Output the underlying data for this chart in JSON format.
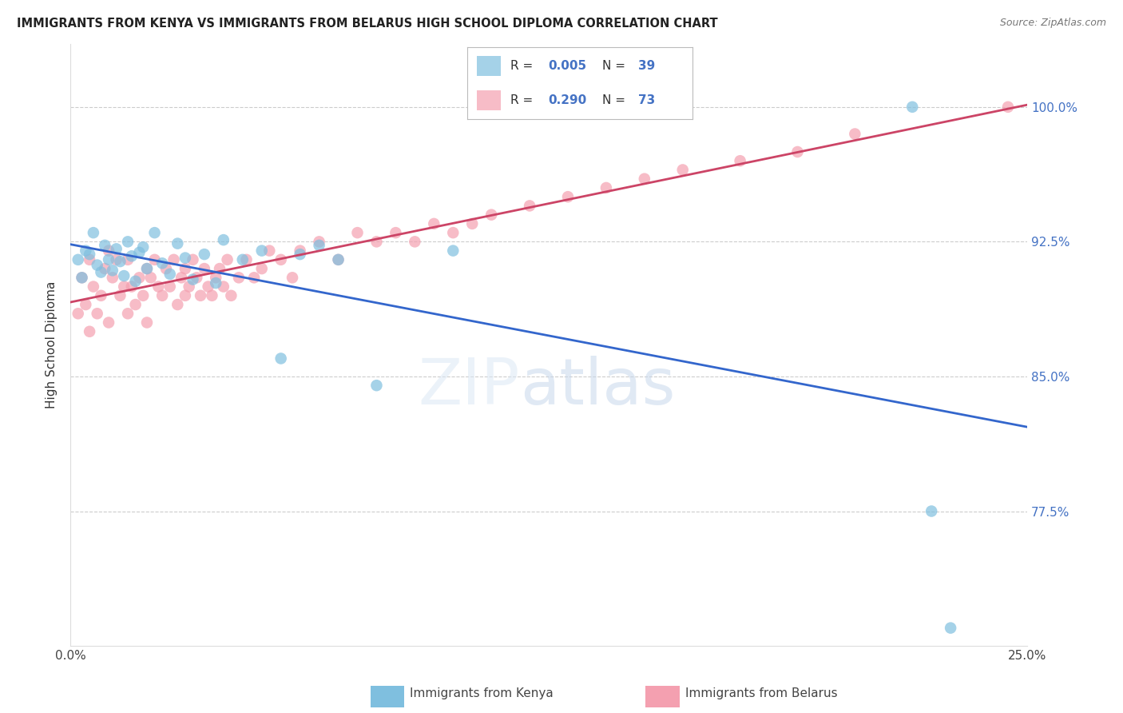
{
  "title": "IMMIGRANTS FROM KENYA VS IMMIGRANTS FROM BELARUS HIGH SCHOOL DIPLOMA CORRELATION CHART",
  "source": "Source: ZipAtlas.com",
  "ylabel_label": "High School Diploma",
  "xlim": [
    0.0,
    25.0
  ],
  "ylim": [
    70.0,
    103.5
  ],
  "y_ticks": [
    77.5,
    85.0,
    92.5,
    100.0
  ],
  "kenya_color": "#7fbfdf",
  "belarus_color": "#f4a0b0",
  "kenya_R": 0.005,
  "kenya_N": 39,
  "belarus_R": 0.29,
  "belarus_N": 73,
  "kenya_line_color": "#3366cc",
  "belarus_line_color": "#cc4466",
  "kenya_scatter_x": [
    0.2,
    0.3,
    0.4,
    0.5,
    0.6,
    0.7,
    0.8,
    0.9,
    1.0,
    1.1,
    1.2,
    1.3,
    1.4,
    1.5,
    1.6,
    1.7,
    1.8,
    1.9,
    2.0,
    2.2,
    2.4,
    2.6,
    2.8,
    3.0,
    3.2,
    3.5,
    3.8,
    4.0,
    4.5,
    5.0,
    5.5,
    6.0,
    6.5,
    7.0,
    8.0,
    10.0,
    22.0,
    22.5,
    23.0
  ],
  "kenya_scatter_y": [
    91.5,
    90.5,
    92.0,
    91.8,
    93.0,
    91.2,
    90.8,
    92.3,
    91.5,
    90.9,
    92.1,
    91.4,
    90.6,
    92.5,
    91.7,
    90.3,
    91.9,
    92.2,
    91.0,
    93.0,
    91.3,
    90.7,
    92.4,
    91.6,
    90.4,
    91.8,
    90.2,
    92.6,
    91.5,
    92.0,
    86.0,
    91.8,
    92.3,
    91.5,
    84.5,
    92.0,
    100.0,
    77.5,
    71.0
  ],
  "belarus_scatter_x": [
    0.2,
    0.3,
    0.4,
    0.5,
    0.5,
    0.6,
    0.7,
    0.8,
    0.9,
    1.0,
    1.0,
    1.1,
    1.2,
    1.3,
    1.4,
    1.5,
    1.5,
    1.6,
    1.7,
    1.8,
    1.9,
    2.0,
    2.0,
    2.1,
    2.2,
    2.3,
    2.4,
    2.5,
    2.6,
    2.7,
    2.8,
    2.9,
    3.0,
    3.0,
    3.1,
    3.2,
    3.3,
    3.4,
    3.5,
    3.6,
    3.7,
    3.8,
    3.9,
    4.0,
    4.1,
    4.2,
    4.4,
    4.6,
    4.8,
    5.0,
    5.2,
    5.5,
    5.8,
    6.0,
    6.5,
    7.0,
    7.5,
    8.0,
    8.5,
    9.0,
    9.5,
    10.0,
    10.5,
    11.0,
    12.0,
    13.0,
    14.0,
    15.0,
    16.0,
    17.5,
    19.0,
    20.5,
    24.5
  ],
  "belarus_scatter_y": [
    88.5,
    90.5,
    89.0,
    91.5,
    87.5,
    90.0,
    88.5,
    89.5,
    91.0,
    92.0,
    88.0,
    90.5,
    91.5,
    89.5,
    90.0,
    88.5,
    91.5,
    90.0,
    89.0,
    90.5,
    89.5,
    91.0,
    88.0,
    90.5,
    91.5,
    90.0,
    89.5,
    91.0,
    90.0,
    91.5,
    89.0,
    90.5,
    91.0,
    89.5,
    90.0,
    91.5,
    90.5,
    89.5,
    91.0,
    90.0,
    89.5,
    90.5,
    91.0,
    90.0,
    91.5,
    89.5,
    90.5,
    91.5,
    90.5,
    91.0,
    92.0,
    91.5,
    90.5,
    92.0,
    92.5,
    91.5,
    93.0,
    92.5,
    93.0,
    92.5,
    93.5,
    93.0,
    93.5,
    94.0,
    94.5,
    95.0,
    95.5,
    96.0,
    96.5,
    97.0,
    97.5,
    98.5,
    100.0
  ]
}
